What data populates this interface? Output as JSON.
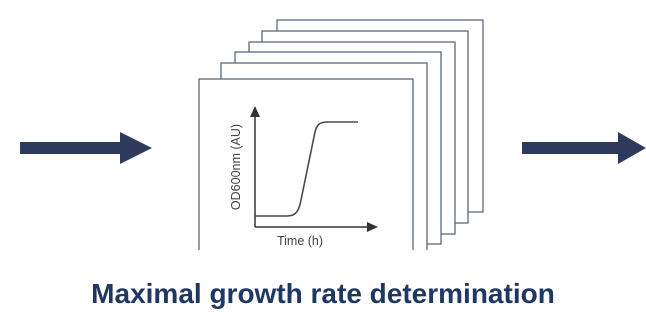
{
  "diagram": {
    "y_axis_label": "OD600nm (AU)",
    "x_axis_label": "Time (h)",
    "caption": "Maximal growth rate determination",
    "arrow_color": "#2e3a5c",
    "frame_color": "#5a6a7e",
    "curve_color": "#4a4a4a",
    "caption_color": "#1f3763",
    "left_arrow_icon": "right-arrow-icon",
    "right_arrow_icon": "right-arrow-icon"
  }
}
